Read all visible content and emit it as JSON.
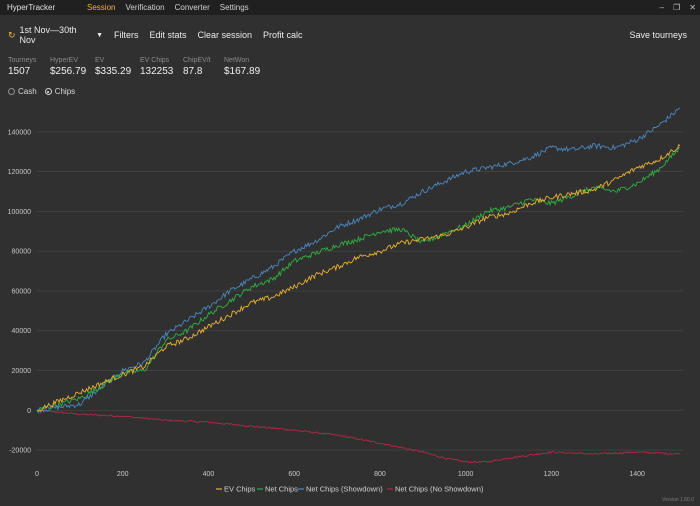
{
  "titlebar": {
    "app_title": "HyperTracker",
    "menu": [
      "Session",
      "Verification",
      "Converter",
      "Settings"
    ],
    "active_menu": "Session",
    "controls": [
      "–",
      "❐",
      "✕"
    ]
  },
  "toolbar": {
    "date_range": "1st Nov—30th Nov",
    "buttons": [
      "Filters",
      "Edit stats",
      "Clear session",
      "Profit calc"
    ],
    "save": "Save tourneys"
  },
  "stats": [
    {
      "label": "Tourneys",
      "value": "1507"
    },
    {
      "label": "HyperEV",
      "value": "$256.79"
    },
    {
      "label": "EV",
      "value": "$335.29"
    },
    {
      "label": "EV Chips",
      "value": "132253"
    },
    {
      "label": "ChipEV/t",
      "value": "87.8"
    },
    {
      "label": "NetWon",
      "value": "$167.89"
    }
  ],
  "mode": {
    "cash": "Cash",
    "chips": "Chips",
    "selected": "chips"
  },
  "version": "Version 1.60.0",
  "chart_data": {
    "type": "line",
    "xlim": [
      0,
      1507
    ],
    "ylim": [
      -27000,
      152000
    ],
    "x_ticks": [
      0,
      200,
      400,
      600,
      800,
      1000,
      1200,
      1400
    ],
    "y_ticks": [
      -20000,
      0,
      20000,
      40000,
      60000,
      80000,
      100000,
      120000,
      140000
    ],
    "grid": "horizontal",
    "legend_position": "bottom",
    "series": [
      {
        "name": "EV Chips",
        "color": "#e8b030",
        "x": [
          0,
          100,
          200,
          250,
          300,
          350,
          400,
          450,
          500,
          550,
          600,
          650,
          700,
          750,
          800,
          850,
          900,
          950,
          1000,
          1050,
          1100,
          1150,
          1200,
          1250,
          1300,
          1350,
          1400,
          1450,
          1500
        ],
        "values": [
          0,
          9000,
          18000,
          22000,
          32000,
          36000,
          42000,
          48000,
          54000,
          57000,
          62000,
          68000,
          72000,
          77000,
          80000,
          84000,
          86000,
          88000,
          92000,
          97000,
          99000,
          104000,
          107000,
          109000,
          111000,
          116000,
          122000,
          126000,
          133000
        ]
      },
      {
        "name": "Net Chips",
        "color": "#2fb040",
        "x": [
          0,
          100,
          150,
          200,
          250,
          300,
          350,
          400,
          450,
          500,
          550,
          600,
          650,
          700,
          750,
          800,
          850,
          900,
          950,
          1000,
          1050,
          1100,
          1150,
          1200,
          1250,
          1300,
          1350,
          1400,
          1450,
          1500
        ],
        "values": [
          0,
          6000,
          12000,
          19000,
          20000,
          35000,
          40000,
          48000,
          55000,
          62000,
          66000,
          75000,
          79000,
          83000,
          86000,
          90000,
          91000,
          84000,
          89000,
          93000,
          100000,
          102000,
          106000,
          104000,
          108000,
          112000,
          110000,
          114000,
          121000,
          132000
        ]
      },
      {
        "name": "Net Chips (Showdown)",
        "color": "#4a86c0",
        "x": [
          0,
          100,
          200,
          250,
          300,
          350,
          400,
          450,
          500,
          550,
          600,
          650,
          700,
          750,
          800,
          850,
          900,
          950,
          1000,
          1050,
          1100,
          1150,
          1200,
          1250,
          1300,
          1350,
          1400,
          1450,
          1500
        ],
        "values": [
          0,
          3000,
          20000,
          24000,
          38000,
          45000,
          52000,
          60000,
          66000,
          72000,
          80000,
          85000,
          92000,
          96000,
          101000,
          104000,
          110000,
          115000,
          120000,
          122000,
          124000,
          127000,
          132000,
          131000,
          133000,
          132000,
          136000,
          143000,
          152000
        ]
      },
      {
        "name": "Net Chips (No Showdown)",
        "color": "#b02a45",
        "x": [
          0,
          50,
          100,
          200,
          300,
          400,
          500,
          600,
          700,
          800,
          900,
          950,
          1000,
          1050,
          1100,
          1200,
          1300,
          1400,
          1500
        ],
        "values": [
          0,
          -1000,
          -2000,
          -3000,
          -5000,
          -6000,
          -8000,
          -10000,
          -12500,
          -16500,
          -21000,
          -24000,
          -26000,
          -26000,
          -24000,
          -21000,
          -22000,
          -21000,
          -22000
        ]
      }
    ]
  }
}
